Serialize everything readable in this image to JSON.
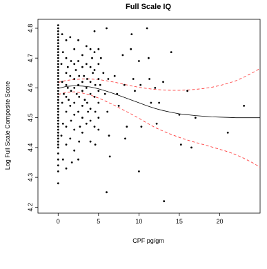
{
  "chart_data": {
    "type": "scatter",
    "title": "Full Scale IQ",
    "xlabel": "CPF pg/gm",
    "ylabel": "Log Full Scale Composite Score",
    "xlim": [
      -2.5,
      25
    ],
    "ylim": [
      4.18,
      4.83
    ],
    "xticks": [
      0,
      5,
      10,
      15,
      20
    ],
    "yticks": [
      4.2,
      4.3,
      4.4,
      4.5,
      4.6,
      4.7,
      4.8
    ],
    "grid": false,
    "legend": "none",
    "colors": {
      "points": "#000000",
      "fit": "#000000",
      "confidence_band": "#ff3b3b"
    },
    "points": [
      [
        0,
        4.81
      ],
      [
        0,
        4.8
      ],
      [
        0,
        4.79
      ],
      [
        0,
        4.78
      ],
      [
        0,
        4.77
      ],
      [
        0,
        4.76
      ],
      [
        0,
        4.75
      ],
      [
        0,
        4.74
      ],
      [
        0,
        4.73
      ],
      [
        0,
        4.72
      ],
      [
        0,
        4.71
      ],
      [
        0,
        4.7
      ],
      [
        0,
        4.69
      ],
      [
        0,
        4.68
      ],
      [
        0,
        4.67
      ],
      [
        0,
        4.66
      ],
      [
        0,
        4.65
      ],
      [
        0,
        4.64
      ],
      [
        0,
        4.63
      ],
      [
        0,
        4.62
      ],
      [
        0,
        4.61
      ],
      [
        0,
        4.6
      ],
      [
        0,
        4.59
      ],
      [
        0,
        4.58
      ],
      [
        0,
        4.57
      ],
      [
        0,
        4.56
      ],
      [
        0,
        4.55
      ],
      [
        0,
        4.54
      ],
      [
        0,
        4.53
      ],
      [
        0,
        4.52
      ],
      [
        0,
        4.51
      ],
      [
        0,
        4.5
      ],
      [
        0,
        4.49
      ],
      [
        0,
        4.48
      ],
      [
        0,
        4.47
      ],
      [
        0,
        4.46
      ],
      [
        0,
        4.45
      ],
      [
        0,
        4.44
      ],
      [
        0,
        4.43
      ],
      [
        0,
        4.42
      ],
      [
        0,
        4.41
      ],
      [
        0,
        4.4
      ],
      [
        0,
        4.38
      ],
      [
        0,
        4.36
      ],
      [
        0,
        4.34
      ],
      [
        0,
        4.32
      ],
      [
        0,
        4.28
      ],
      [
        0.5,
        4.78
      ],
      [
        0.6,
        4.72
      ],
      [
        0.4,
        4.68
      ],
      [
        0.5,
        4.62
      ],
      [
        0.7,
        4.58
      ],
      [
        0.5,
        4.55
      ],
      [
        0.6,
        4.48
      ],
      [
        0.4,
        4.44
      ],
      [
        0.6,
        4.36
      ],
      [
        1,
        4.76
      ],
      [
        1,
        4.7
      ],
      [
        1,
        4.65
      ],
      [
        1,
        4.61
      ],
      [
        1,
        4.57
      ],
      [
        1,
        4.52
      ],
      [
        1,
        4.47
      ],
      [
        1,
        4.41
      ],
      [
        1,
        4.33
      ],
      [
        1.2,
        4.6
      ],
      [
        1.3,
        4.56
      ],
      [
        1.2,
        4.67
      ],
      [
        1.5,
        4.77
      ],
      [
        1.6,
        4.69
      ],
      [
        1.5,
        4.64
      ],
      [
        1.6,
        4.59
      ],
      [
        1.5,
        4.54
      ],
      [
        1.6,
        4.49
      ],
      [
        1.5,
        4.43
      ],
      [
        1.7,
        4.35
      ],
      [
        2,
        4.73
      ],
      [
        2,
        4.68
      ],
      [
        2,
        4.63
      ],
      [
        2,
        4.6
      ],
      [
        2,
        4.55
      ],
      [
        2,
        4.51
      ],
      [
        2,
        4.46
      ],
      [
        2,
        4.39
      ],
      [
        2.2,
        4.66
      ],
      [
        2.3,
        4.58
      ],
      [
        2.5,
        4.76
      ],
      [
        2.5,
        4.69
      ],
      [
        2.6,
        4.64
      ],
      [
        2.5,
        4.61
      ],
      [
        2.6,
        4.57
      ],
      [
        2.5,
        4.52
      ],
      [
        2.7,
        4.47
      ],
      [
        2.6,
        4.42
      ],
      [
        2.5,
        4.36
      ],
      [
        3,
        4.71
      ],
      [
        3,
        4.67
      ],
      [
        3,
        4.62
      ],
      [
        3,
        4.59
      ],
      [
        3,
        4.54
      ],
      [
        3,
        4.5
      ],
      [
        3,
        4.45
      ],
      [
        3.2,
        4.64
      ],
      [
        3.3,
        4.56
      ],
      [
        3.5,
        4.74
      ],
      [
        3.5,
        4.68
      ],
      [
        3.6,
        4.63
      ],
      [
        3.5,
        4.6
      ],
      [
        3.6,
        4.55
      ],
      [
        3.5,
        4.48
      ],
      [
        3.7,
        4.52
      ],
      [
        4,
        4.73
      ],
      [
        4,
        4.67
      ],
      [
        4,
        4.62
      ],
      [
        4,
        4.58
      ],
      [
        4,
        4.53
      ],
      [
        4,
        4.49
      ],
      [
        4,
        4.42
      ],
      [
        4.2,
        4.7
      ],
      [
        4.3,
        4.65
      ],
      [
        4.5,
        4.79
      ],
      [
        4.5,
        4.72
      ],
      [
        4.5,
        4.66
      ],
      [
        4.6,
        4.61
      ],
      [
        4.5,
        4.57
      ],
      [
        4.6,
        4.52
      ],
      [
        4.5,
        4.47
      ],
      [
        4.6,
        4.41
      ],
      [
        5,
        4.73
      ],
      [
        5,
        4.68
      ],
      [
        5,
        4.63
      ],
      [
        5,
        4.59
      ],
      [
        5,
        4.55
      ],
      [
        5,
        4.5
      ],
      [
        5,
        4.46
      ],
      [
        5.3,
        4.7
      ],
      [
        5.2,
        4.61
      ],
      [
        5.6,
        4.65
      ],
      [
        5.8,
        4.58
      ],
      [
        6,
        4.8
      ],
      [
        6.2,
        4.63
      ],
      [
        6.1,
        4.52
      ],
      [
        6.3,
        4.44
      ],
      [
        6.4,
        4.37
      ],
      [
        6.0,
        4.25
      ],
      [
        7,
        4.64
      ],
      [
        7.3,
        4.58
      ],
      [
        7.5,
        4.54
      ],
      [
        8,
        4.71
      ],
      [
        8.2,
        4.61
      ],
      [
        8.5,
        4.47
      ],
      [
        8.3,
        4.43
      ],
      [
        9,
        4.73
      ],
      [
        9.3,
        4.63
      ],
      [
        9.5,
        4.59
      ],
      [
        9.1,
        4.78
      ],
      [
        10,
        4.69
      ],
      [
        10.2,
        4.61
      ],
      [
        10.3,
        4.47
      ],
      [
        10,
        4.32
      ],
      [
        11,
        4.8
      ],
      [
        11.2,
        4.7
      ],
      [
        11.3,
        4.63
      ],
      [
        11.5,
        4.55
      ],
      [
        12,
        4.6
      ],
      [
        12.2,
        4.48
      ],
      [
        12.5,
        4.55
      ],
      [
        13,
        4.62
      ],
      [
        13.1,
        4.22
      ],
      [
        14,
        4.72
      ],
      [
        15,
        4.51
      ],
      [
        15.2,
        4.41
      ],
      [
        16,
        4.59
      ],
      [
        16.5,
        4.4
      ],
      [
        17,
        4.5
      ],
      [
        21,
        4.45
      ],
      [
        23,
        4.54
      ]
    ],
    "fit_curve": {
      "x": [
        0,
        1,
        2,
        3,
        4,
        5,
        6,
        7,
        8,
        9,
        10,
        11,
        12,
        13,
        14,
        15,
        16,
        17,
        18,
        19,
        20,
        21,
        22,
        23,
        24,
        25
      ],
      "y": [
        4.598,
        4.605,
        4.607,
        4.606,
        4.603,
        4.597,
        4.589,
        4.58,
        4.57,
        4.56,
        4.55,
        4.54,
        4.531,
        4.524,
        4.518,
        4.513,
        4.51,
        4.507,
        4.505,
        4.503,
        4.502,
        4.501,
        4.5,
        4.5,
        4.5,
        4.5
      ]
    },
    "ci_upper": {
      "x": [
        0,
        1,
        2,
        3,
        4,
        5,
        6,
        7,
        8,
        9,
        10,
        11,
        12,
        13,
        14,
        15,
        16,
        17,
        18,
        19,
        20,
        21,
        22,
        23,
        24,
        25
      ],
      "y": [
        4.618,
        4.625,
        4.628,
        4.63,
        4.63,
        4.628,
        4.624,
        4.619,
        4.613,
        4.607,
        4.602,
        4.598,
        4.595,
        4.593,
        4.592,
        4.592,
        4.593,
        4.595,
        4.598,
        4.602,
        4.608,
        4.615,
        4.624,
        4.636,
        4.65,
        4.665
      ]
    },
    "ci_lower": {
      "x": [
        0,
        1,
        2,
        3,
        4,
        5,
        6,
        7,
        8,
        9,
        10,
        11,
        12,
        13,
        14,
        15,
        16,
        17,
        18,
        19,
        20,
        21,
        22,
        23,
        24,
        25
      ],
      "y": [
        4.578,
        4.585,
        4.587,
        4.583,
        4.576,
        4.566,
        4.554,
        4.541,
        4.527,
        4.513,
        4.498,
        4.482,
        4.467,
        4.455,
        4.444,
        4.434,
        4.425,
        4.417,
        4.41,
        4.402,
        4.394,
        4.386,
        4.376,
        4.364,
        4.35,
        4.334
      ]
    }
  }
}
